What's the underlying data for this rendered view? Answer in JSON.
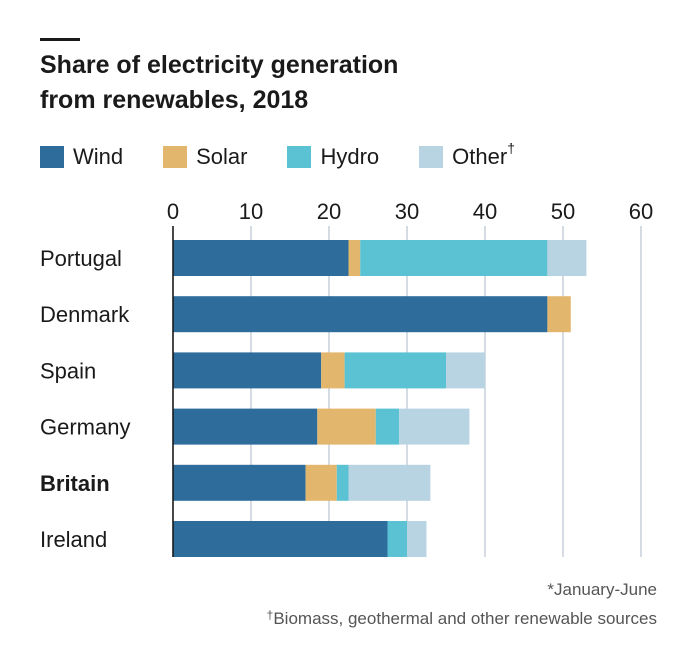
{
  "chart_data": {
    "type": "bar",
    "orientation": "horizontal",
    "stacked": true,
    "title_line1": "Share of electricity generation",
    "title_line2": "from renewables, 2018",
    "categories": [
      "Portugal",
      "Denmark",
      "Spain",
      "Germany",
      "Britain",
      "Ireland"
    ],
    "highlight_category": "Britain",
    "series": [
      {
        "name": "Wind",
        "color": "#2e6c9c",
        "values": [
          22.5,
          48.0,
          19.0,
          18.5,
          17.0,
          27.5
        ]
      },
      {
        "name": "Solar",
        "color": "#e2b76d",
        "values": [
          1.5,
          3.0,
          3.0,
          7.5,
          4.0,
          0
        ]
      },
      {
        "name": "Hydro",
        "color": "#5bc2d3",
        "values": [
          24.0,
          0,
          13.0,
          3.0,
          1.5,
          2.5
        ]
      },
      {
        "name": "Other",
        "name_mark": "†",
        "color": "#b8d4e3",
        "values": [
          5.0,
          0,
          5.0,
          9.0,
          10.5,
          2.5
        ]
      }
    ],
    "xlim": [
      0,
      60
    ],
    "xticks": [
      "0",
      "10",
      "20",
      "30",
      "40",
      "50",
      "60"
    ],
    "x_axis_position": "top",
    "grid": true,
    "legend_position": "top"
  },
  "footnotes": {
    "line1": "*January-June",
    "line2_mark": "†",
    "line2": "Biomass, geothermal and other renewable sources"
  }
}
